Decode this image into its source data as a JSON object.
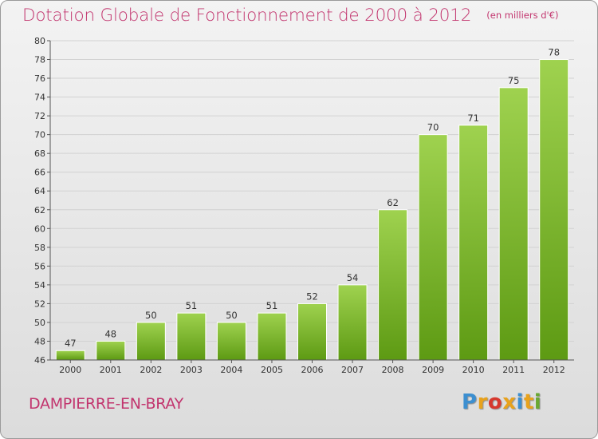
{
  "header": {
    "title": "Dotation Globale de Fonctionnement de 2000 à 2012",
    "unit": "(en milliers d'€)"
  },
  "footer": {
    "city": "DAMPIERRE-EN-BRAY",
    "brand": "Proxiti",
    "brand_letters": [
      {
        "char": "P",
        "color": "#3c8fd0"
      },
      {
        "char": "r",
        "color": "#e8a21c"
      },
      {
        "char": "o",
        "color": "#d6392f"
      },
      {
        "char": "x",
        "color": "#e8a21c"
      },
      {
        "char": "i",
        "color": "#3c8fd0"
      },
      {
        "char": "t",
        "color": "#e8a21c"
      },
      {
        "char": "i",
        "color": "#6aa832"
      }
    ]
  },
  "colors": {
    "title": "#c2356e",
    "bar_top": "#9fd24f",
    "bar_bottom": "#5d9a13",
    "grid": "#d2d2d2",
    "axis": "#555555"
  },
  "chart_data": {
    "type": "bar",
    "title": "Dotation Globale de Fonctionnement de 2000 à 2012",
    "unit": "(en milliers d'€)",
    "xlabel": "",
    "ylabel": "",
    "categories": [
      "2000",
      "2001",
      "2002",
      "2003",
      "2004",
      "2005",
      "2006",
      "2007",
      "2008",
      "2009",
      "2010",
      "2011",
      "2012"
    ],
    "values": [
      47,
      48,
      50,
      51,
      50,
      51,
      52,
      54,
      62,
      70,
      71,
      75,
      78
    ],
    "ylim": [
      46,
      80
    ],
    "yticks": [
      46,
      48,
      50,
      52,
      54,
      56,
      58,
      60,
      62,
      64,
      66,
      68,
      70,
      72,
      74,
      76,
      78,
      80
    ],
    "grid": true,
    "legend": "none",
    "data_labels": true
  }
}
